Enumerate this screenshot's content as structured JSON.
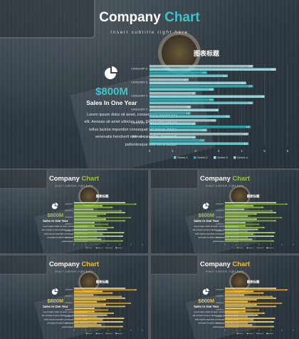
{
  "slide": {
    "title_word1": "Company",
    "title_word2": "Chart",
    "subtitle": "Insert subtitle right here",
    "big_number": "$800M",
    "big_number_sub": "Sales In One Year",
    "body": [
      "Lorem ipsum dolor sit amet, consectetur adipiscing",
      "elit. Aenean sit amet ultricies sem. Donec non elit eu",
      "tellus lacinia imperdiet consequat vel purus. Nunc",
      "venenatis hendrerit nibh ut convallis. Praesent",
      "pellentesque sed est a luctus"
    ]
  },
  "themes": [
    {
      "name": "teal",
      "accent": "#3fc4c7",
      "series_colors": [
        "#6fcfd4",
        "#2da9b0",
        "#9fe0e3",
        "#a9c7c9"
      ]
    },
    {
      "name": "green",
      "accent": "#9bc53d",
      "series_colors": [
        "#8ab83a",
        "#b3d86b",
        "#6e9a2a",
        "#c7d9a6"
      ]
    },
    {
      "name": "green",
      "accent": "#9bc53d",
      "series_colors": [
        "#8ab83a",
        "#b3d86b",
        "#6e9a2a",
        "#c7d9a6"
      ]
    },
    {
      "name": "gold",
      "accent": "#f2c12e",
      "series_colors": [
        "#f2b92a",
        "#f6cf5a",
        "#d99a1a",
        "#f5dc8f"
      ]
    },
    {
      "name": "gold",
      "accent": "#f2c12e",
      "series_colors": [
        "#f2b92a",
        "#f6cf5a",
        "#d99a1a",
        "#f5dc8f"
      ]
    }
  ],
  "chart_data": {
    "type": "bar",
    "orientation": "horizontal",
    "title": "图表标题",
    "categories": [
      "CATEGORY 1",
      "CATEGORY 2",
      "CATEGORY 3",
      "CATEGORY 4",
      "CATEGORY 5",
      "CATEGORY 6"
    ],
    "series": [
      {
        "name": "Series 1",
        "values": [
          4.3,
          2.5,
          3.5,
          4.5,
          2.8,
          3.4
        ]
      },
      {
        "name": "Series 2",
        "values": [
          2.4,
          4.4,
          1.8,
          2.8,
          4.5,
          2.5
        ]
      },
      {
        "name": "Series 3",
        "values": [
          2,
          2,
          3,
          5,
          4.2,
          5.5
        ]
      },
      {
        "name": "Series 4",
        "values": [
          4.3,
          2.9,
          1.8,
          2,
          1.7,
          4.5
        ]
      }
    ],
    "xlim": [
      0,
      6
    ],
    "x_ticks": [
      "0",
      "1",
      "2",
      "3",
      "4",
      "5",
      "6"
    ],
    "legend_position": "bottom",
    "grid": true
  }
}
